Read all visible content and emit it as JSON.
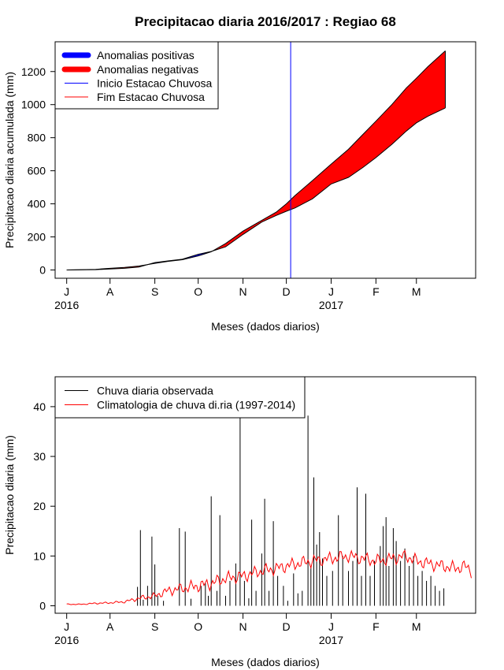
{
  "chart_data": [
    {
      "type": "area",
      "title": "Precipitacao diaria 2016/2017 : Regiao 68",
      "xlabel": "Meses (dados diarios)",
      "ylabel": "Precipitacao diaria acumulada (mm)",
      "xlim_days": [
        -8,
        283
      ],
      "ylim": [
        -50,
        1380
      ],
      "yticks": [
        0,
        200,
        400,
        600,
        800,
        1000,
        1200
      ],
      "month_ticks": [
        {
          "label": "J",
          "day": 0
        },
        {
          "label": "A",
          "day": 30
        },
        {
          "label": "S",
          "day": 61
        },
        {
          "label": "O",
          "day": 91
        },
        {
          "label": "N",
          "day": 122
        },
        {
          "label": "D",
          "day": 152
        },
        {
          "label": "J",
          "day": 183
        },
        {
          "label": "F",
          "day": 214
        },
        {
          "label": "M",
          "day": 242
        }
      ],
      "year_labels": [
        {
          "label": "2016",
          "day": 0
        },
        {
          "label": "2017",
          "day": 183
        }
      ],
      "series": [
        {
          "name": "observed_cumulative",
          "days": [
            0,
            20,
            30,
            40,
            50,
            61,
            70,
            80,
            91,
            100,
            110,
            122,
            135,
            145,
            152,
            158,
            170,
            183,
            195,
            205,
            214,
            225,
            235,
            242,
            250,
            262
          ],
          "values": [
            0,
            2,
            6,
            10,
            18,
            45,
            55,
            65,
            95,
            112,
            140,
            215,
            290,
            330,
            355,
            375,
            430,
            520,
            560,
            620,
            680,
            760,
            840,
            890,
            930,
            980
          ]
        },
        {
          "name": "climatology_cumulative",
          "days": [
            0,
            20,
            30,
            40,
            50,
            61,
            70,
            80,
            91,
            100,
            110,
            122,
            135,
            145,
            152,
            158,
            170,
            183,
            195,
            205,
            214,
            225,
            235,
            242,
            250,
            262
          ],
          "values": [
            0,
            4,
            10,
            16,
            24,
            40,
            52,
            62,
            85,
            110,
            160,
            235,
            300,
            350,
            400,
            450,
            540,
            640,
            730,
            820,
            900,
            1000,
            1100,
            1160,
            1230,
            1325
          ]
        }
      ],
      "onset_day": 155,
      "colors": {
        "positive": "#0000ff",
        "negative": "#ff0000",
        "onset": "#0000ff",
        "end": "#ff0000"
      },
      "legend": {
        "position": "top-left",
        "entries": [
          "Anomalias positivas",
          "Anomalias negativas",
          "Inicio Estacao Chuvosa",
          "Fim Estacao Chuvosa"
        ]
      }
    },
    {
      "type": "bar",
      "title": "",
      "xlabel": "Meses (dados diarios)",
      "ylabel": "Precipitacao diaria (mm)",
      "xlim_days": [
        -8,
        283
      ],
      "ylim": [
        -1.5,
        46
      ],
      "yticks": [
        0,
        10,
        20,
        30,
        40
      ],
      "month_ticks": [
        {
          "label": "J",
          "day": 0
        },
        {
          "label": "A",
          "day": 30
        },
        {
          "label": "S",
          "day": 61
        },
        {
          "label": "O",
          "day": 91
        },
        {
          "label": "N",
          "day": 122
        },
        {
          "label": "D",
          "day": 152
        },
        {
          "label": "J",
          "day": 183
        },
        {
          "label": "F",
          "day": 214
        },
        {
          "label": "M",
          "day": 242
        }
      ],
      "year_labels": [
        {
          "label": "2016",
          "day": 0
        },
        {
          "label": "2017",
          "day": 183
        }
      ],
      "bars": [
        {
          "day": 49,
          "value": 3.8
        },
        {
          "day": 51,
          "value": 15.2
        },
        {
          "day": 53,
          "value": 1.2
        },
        {
          "day": 56,
          "value": 4.0
        },
        {
          "day": 59,
          "value": 13.9
        },
        {
          "day": 61,
          "value": 8.3
        },
        {
          "day": 63,
          "value": 2.0
        },
        {
          "day": 67,
          "value": 1.0
        },
        {
          "day": 78,
          "value": 15.6
        },
        {
          "day": 82,
          "value": 14.9
        },
        {
          "day": 86,
          "value": 1.4
        },
        {
          "day": 93,
          "value": 4.0
        },
        {
          "day": 96,
          "value": 4.5
        },
        {
          "day": 98,
          "value": 2.0
        },
        {
          "day": 100,
          "value": 22.0
        },
        {
          "day": 104,
          "value": 3.0
        },
        {
          "day": 106,
          "value": 18.2
        },
        {
          "day": 110,
          "value": 2.0
        },
        {
          "day": 113,
          "value": 5.0
        },
        {
          "day": 117,
          "value": 8.5
        },
        {
          "day": 120,
          "value": 38.0
        },
        {
          "day": 123,
          "value": 5.0
        },
        {
          "day": 126,
          "value": 1.5
        },
        {
          "day": 128,
          "value": 17.3
        },
        {
          "day": 131,
          "value": 3.0
        },
        {
          "day": 135,
          "value": 10.5
        },
        {
          "day": 137,
          "value": 21.5
        },
        {
          "day": 140,
          "value": 3.0
        },
        {
          "day": 143,
          "value": 17.0
        },
        {
          "day": 146,
          "value": 6.0
        },
        {
          "day": 150,
          "value": 4.0
        },
        {
          "day": 153,
          "value": 1.0
        },
        {
          "day": 157,
          "value": 6.5
        },
        {
          "day": 160,
          "value": 2.5
        },
        {
          "day": 163,
          "value": 3.0
        },
        {
          "day": 167,
          "value": 38.2
        },
        {
          "day": 169,
          "value": 8.0
        },
        {
          "day": 171,
          "value": 25.8
        },
        {
          "day": 173,
          "value": 12.3
        },
        {
          "day": 175,
          "value": 14.8
        },
        {
          "day": 177,
          "value": 9.5
        },
        {
          "day": 180,
          "value": 6.0
        },
        {
          "day": 184,
          "value": 7.0
        },
        {
          "day": 188,
          "value": 18.2
        },
        {
          "day": 191,
          "value": 10.0
        },
        {
          "day": 195,
          "value": 7.0
        },
        {
          "day": 198,
          "value": 9.0
        },
        {
          "day": 201,
          "value": 23.8
        },
        {
          "day": 204,
          "value": 6.0
        },
        {
          "day": 207,
          "value": 22.5
        },
        {
          "day": 210,
          "value": 6.0
        },
        {
          "day": 213,
          "value": 9.0
        },
        {
          "day": 217,
          "value": 12.0
        },
        {
          "day": 219,
          "value": 16.0
        },
        {
          "day": 221,
          "value": 17.8
        },
        {
          "day": 223,
          "value": 8.0
        },
        {
          "day": 226,
          "value": 15.6
        },
        {
          "day": 228,
          "value": 13.0
        },
        {
          "day": 231,
          "value": 9.0
        },
        {
          "day": 234,
          "value": 11.5
        },
        {
          "day": 237,
          "value": 8.0
        },
        {
          "day": 240,
          "value": 10.0
        },
        {
          "day": 243,
          "value": 6.0
        },
        {
          "day": 246,
          "value": 7.0
        },
        {
          "day": 249,
          "value": 5.0
        },
        {
          "day": 252,
          "value": 6.0
        },
        {
          "day": 255,
          "value": 4.0
        },
        {
          "day": 258,
          "value": 3.0
        },
        {
          "day": 261,
          "value": 3.5
        }
      ],
      "climatology": {
        "days": [
          0,
          10,
          20,
          30,
          40,
          50,
          61,
          70,
          80,
          91,
          100,
          110,
          122,
          135,
          145,
          152,
          160,
          170,
          183,
          195,
          205,
          214,
          225,
          235,
          242,
          250,
          260,
          270,
          275,
          280
        ],
        "values": [
          0.3,
          0.3,
          0.5,
          0.6,
          0.8,
          1.5,
          2.0,
          3.0,
          3.5,
          4.0,
          4.5,
          5.5,
          6.0,
          7.0,
          7.5,
          8.0,
          8.5,
          9.0,
          9.5,
          10.0,
          9.5,
          9.0,
          9.5,
          10.0,
          9.0,
          8.5,
          8.0,
          7.5,
          8.0,
          7.0
        ]
      },
      "colors": {
        "observed": "#000000",
        "climatology": "#ff0000"
      },
      "legend": {
        "position": "top-left",
        "entries": [
          "Chuva diaria observada",
          "Climatologia de chuva di.ria (1997-2014)"
        ]
      }
    }
  ]
}
